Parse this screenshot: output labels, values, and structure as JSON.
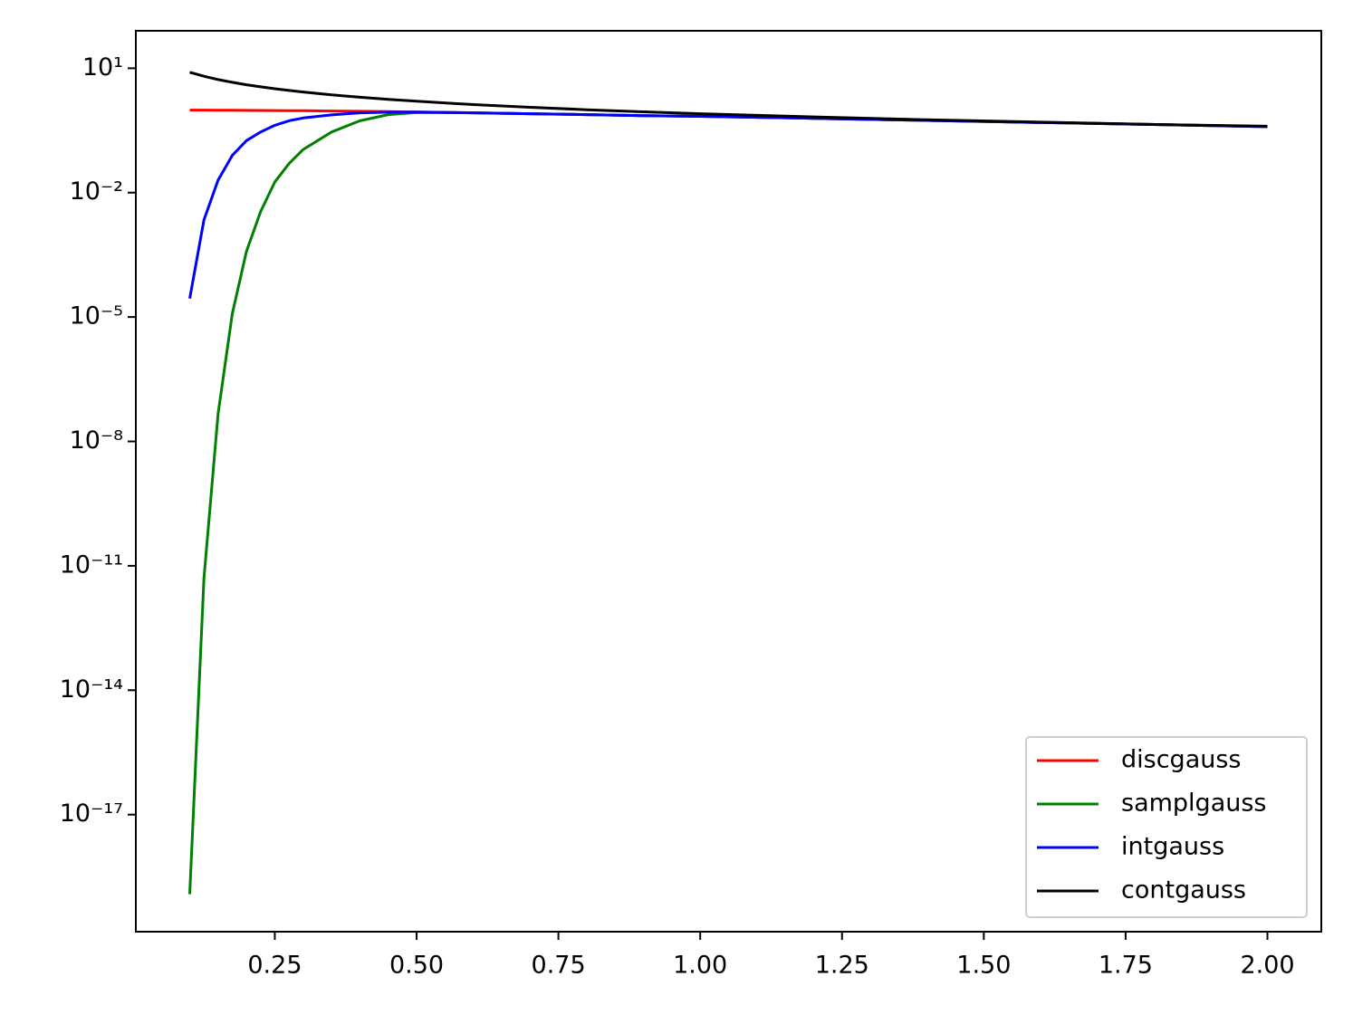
{
  "chart_data": {
    "type": "line",
    "x": [
      0.1,
      0.125,
      0.15,
      0.175,
      0.2,
      0.225,
      0.25,
      0.275,
      0.3,
      0.35,
      0.4,
      0.45,
      0.5,
      0.6,
      0.7,
      0.8,
      0.9,
      1.0,
      1.2,
      1.4,
      1.6,
      1.8,
      2.0
    ],
    "series": [
      {
        "name": "discgauss",
        "color": "#ff0000",
        "values": [
          0.98,
          0.98,
          0.975,
          0.97,
          0.965,
          0.96,
          0.955,
          0.95,
          0.945,
          0.93,
          0.915,
          0.9,
          0.88,
          0.84,
          0.8,
          0.76,
          0.72,
          0.69,
          0.62,
          0.55,
          0.49,
          0.44,
          0.39
        ]
      },
      {
        "name": "samplgauss",
        "color": "#008000",
        "values": [
          1.2e-19,
          5e-12,
          4.6e-08,
          1.2e-05,
          0.00038,
          0.0035,
          0.018,
          0.05,
          0.11,
          0.29,
          0.54,
          0.76,
          0.86,
          0.84,
          0.8,
          0.76,
          0.72,
          0.69,
          0.62,
          0.55,
          0.49,
          0.44,
          0.39
        ]
      },
      {
        "name": "intgauss",
        "color": "#0000ff",
        "values": [
          2.8e-05,
          0.0022,
          0.02,
          0.079,
          0.18,
          0.29,
          0.42,
          0.54,
          0.63,
          0.75,
          0.84,
          0.87,
          0.88,
          0.84,
          0.8,
          0.76,
          0.72,
          0.69,
          0.62,
          0.55,
          0.49,
          0.44,
          0.39
        ]
      },
      {
        "name": "contgauss",
        "color": "#000000",
        "values": [
          8.0,
          6.4,
          5.33,
          4.57,
          4.0,
          3.56,
          3.2,
          2.91,
          2.67,
          2.29,
          2.0,
          1.78,
          1.6,
          1.33,
          1.14,
          1.0,
          0.89,
          0.8,
          0.67,
          0.57,
          0.5,
          0.44,
          0.4
        ]
      }
    ],
    "xlim": [
      0.005,
      2.095
    ],
    "xticks": [
      0.25,
      {
        "value": 0.5,
        "label": "0.50"
      },
      0.75,
      {
        "value": 1.0,
        "label": "1.00"
      },
      1.25,
      {
        "value": 1.5,
        "label": "1.50"
      },
      1.75,
      {
        "value": 2.0,
        "label": "2.00"
      }
    ],
    "ylim": [
      1.5e-20,
      80
    ],
    "yticks": [
      {
        "value": 10,
        "label": "10¹"
      },
      {
        "value": 0.01,
        "label": "10⁻²"
      },
      {
        "value": 1e-05,
        "label": "10⁻⁵"
      },
      {
        "value": 1e-08,
        "label": "10⁻⁸"
      },
      {
        "value": 1e-11,
        "label": "10⁻¹¹"
      },
      {
        "value": 1e-14,
        "label": "10⁻¹⁴"
      },
      {
        "value": 1e-17,
        "label": "10⁻¹⁷"
      }
    ],
    "ylog": true,
    "grid": false,
    "legend": "lower right"
  }
}
